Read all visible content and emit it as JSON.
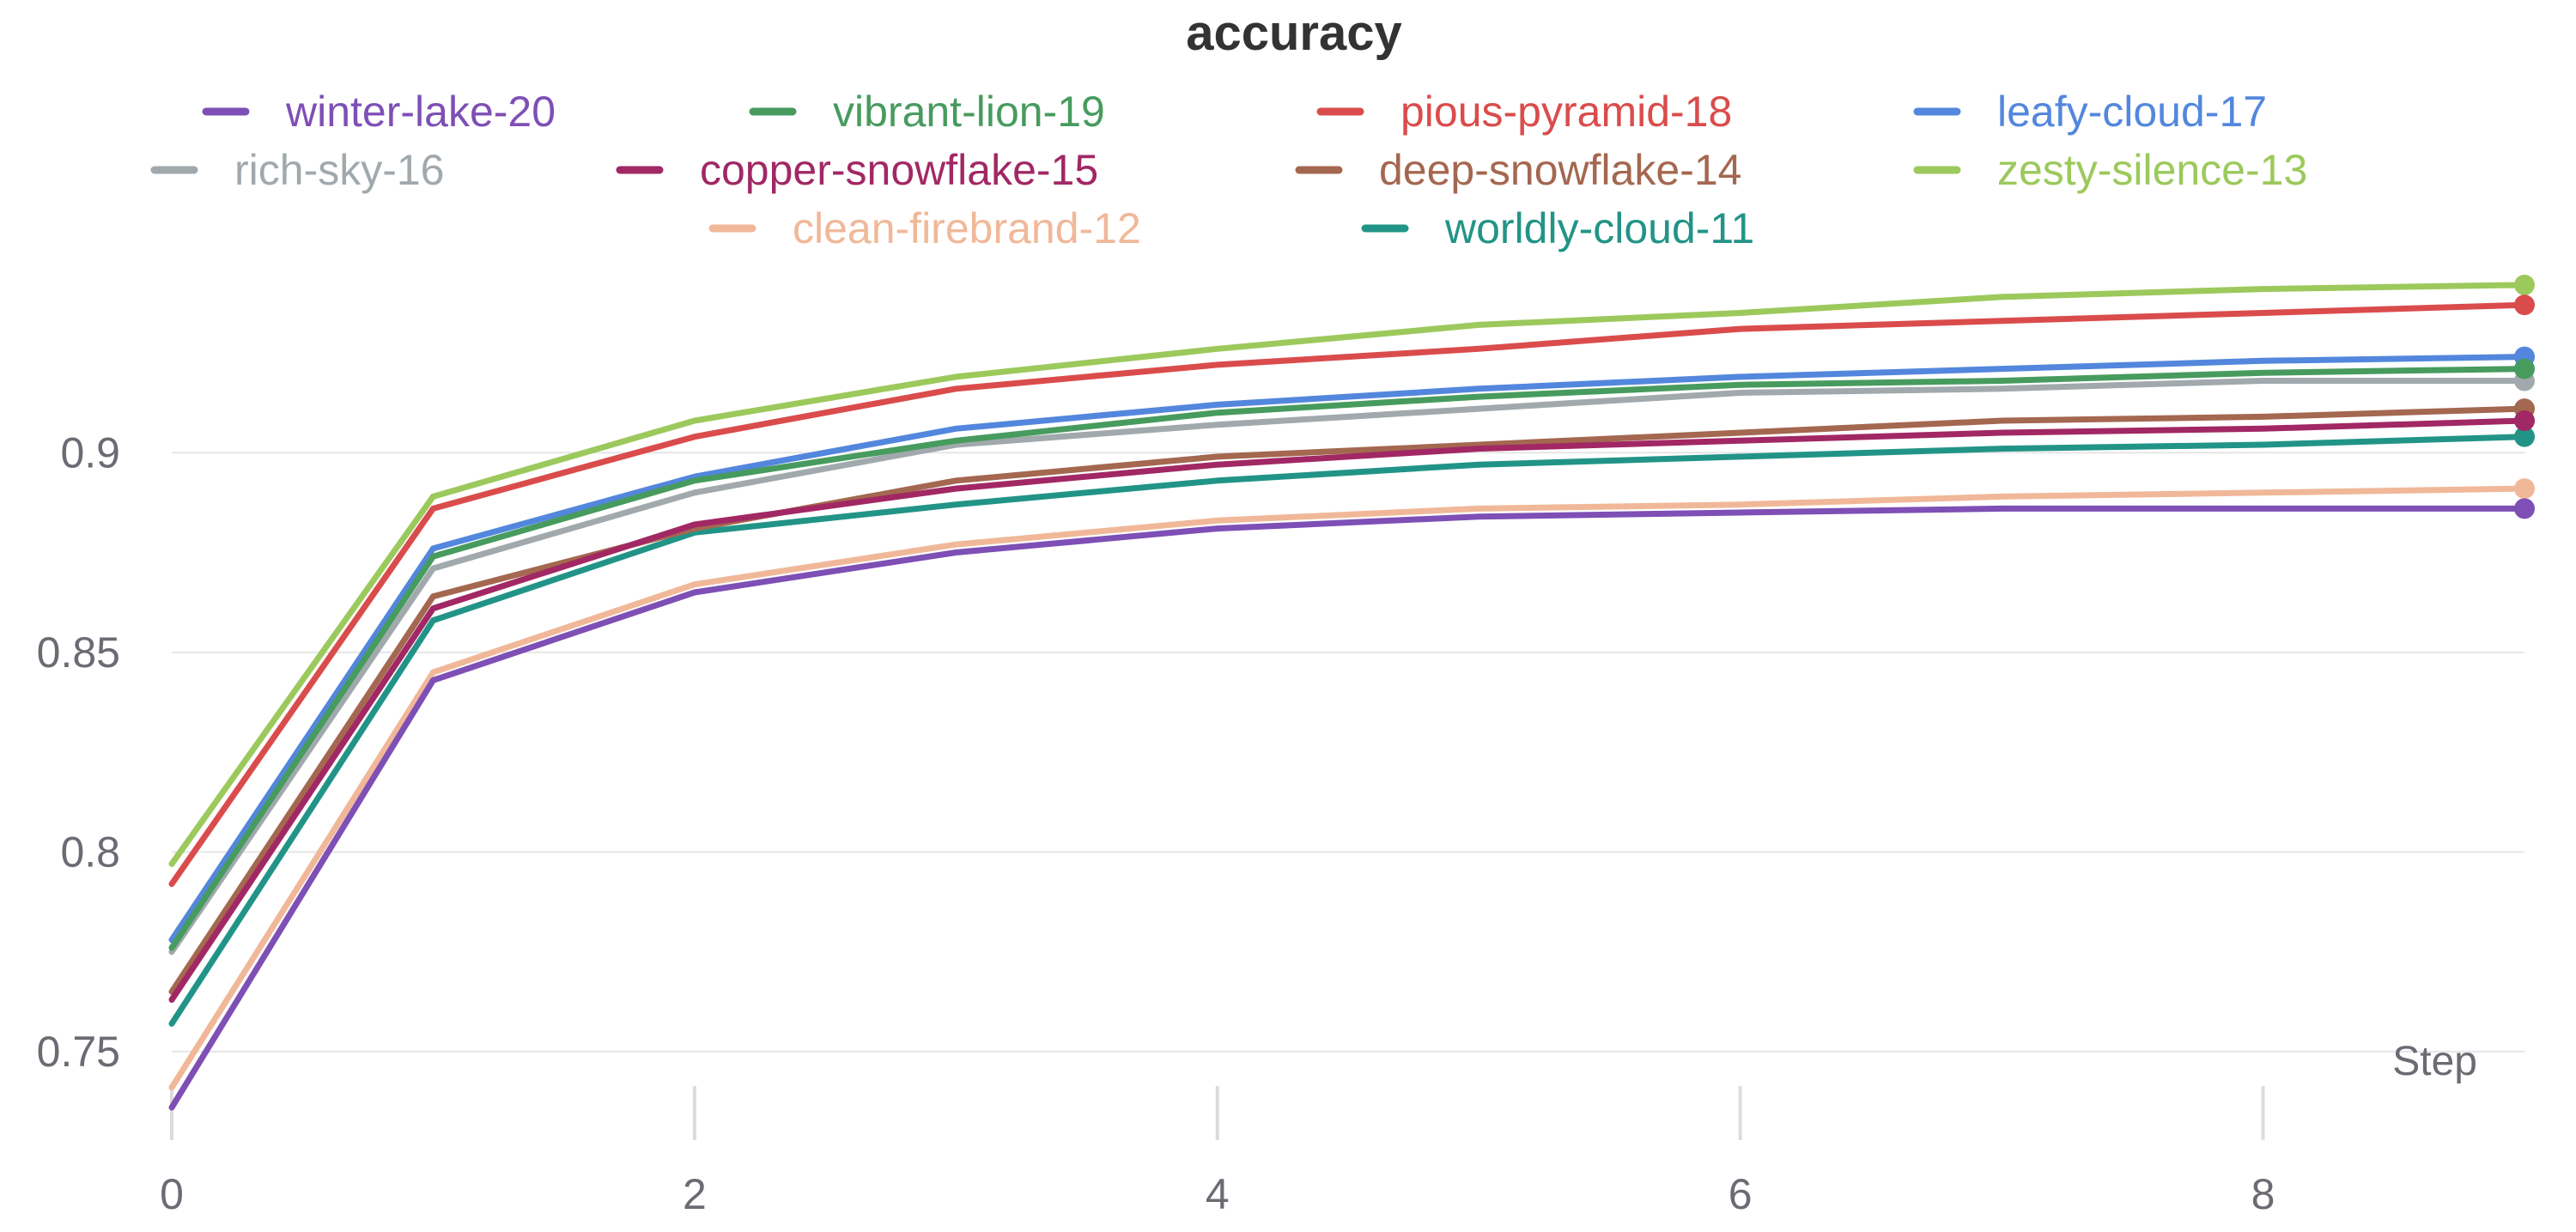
{
  "chart_data": {
    "type": "line",
    "title": "accuracy",
    "xlabel": "Step",
    "ylabel": "",
    "xlim": [
      0,
      9
    ],
    "ylim": [
      0.733,
      0.948
    ],
    "x": [
      0,
      1,
      2,
      3,
      4,
      5,
      6,
      7,
      8,
      9
    ],
    "x_ticks": [
      "0",
      "2",
      "4",
      "6",
      "8"
    ],
    "y_ticks": [
      "0.75",
      "0.8",
      "0.85",
      "0.9"
    ],
    "grid": "horizontal",
    "legend_position": "top",
    "series": [
      {
        "name": "winter-lake-20",
        "color": "#7e4fb5",
        "values": [
          0.736,
          0.843,
          0.865,
          0.875,
          0.881,
          0.884,
          0.885,
          0.886,
          0.886,
          0.886
        ]
      },
      {
        "name": "vibrant-lion-19",
        "color": "#479b5e",
        "values": [
          0.776,
          0.874,
          0.893,
          0.903,
          0.91,
          0.914,
          0.917,
          0.918,
          0.92,
          0.921
        ]
      },
      {
        "name": "pious-pyramid-18",
        "color": "#da4c4c",
        "values": [
          0.792,
          0.886,
          0.904,
          0.916,
          0.922,
          0.926,
          0.931,
          0.933,
          0.935,
          0.937
        ]
      },
      {
        "name": "leafy-cloud-17",
        "color": "#5387dd",
        "values": [
          0.778,
          0.876,
          0.894,
          0.906,
          0.912,
          0.916,
          0.919,
          0.921,
          0.923,
          0.924
        ]
      },
      {
        "name": "rich-sky-16",
        "color": "#a1a9ad",
        "values": [
          0.775,
          0.871,
          0.89,
          0.902,
          0.907,
          0.911,
          0.915,
          0.916,
          0.918,
          0.918
        ]
      },
      {
        "name": "copper-snowflake-15",
        "color": "#a12864",
        "values": [
          0.763,
          0.861,
          0.882,
          0.891,
          0.897,
          0.901,
          0.903,
          0.905,
          0.906,
          0.908
        ]
      },
      {
        "name": "deep-snowflake-14",
        "color": "#a46750",
        "values": [
          0.765,
          0.864,
          0.881,
          0.893,
          0.899,
          0.902,
          0.905,
          0.908,
          0.909,
          0.911
        ]
      },
      {
        "name": "zesty-silence-13",
        "color": "#9cc95c",
        "values": [
          0.797,
          0.889,
          0.908,
          0.919,
          0.926,
          0.932,
          0.935,
          0.939,
          0.941,
          0.942
        ]
      },
      {
        "name": "clean-firebrand-12",
        "color": "#f0b899",
        "values": [
          0.741,
          0.845,
          0.867,
          0.877,
          0.883,
          0.886,
          0.887,
          0.889,
          0.89,
          0.891
        ]
      },
      {
        "name": "worldly-cloud-11",
        "color": "#229487",
        "values": [
          0.757,
          0.858,
          0.88,
          0.887,
          0.893,
          0.897,
          0.899,
          0.901,
          0.902,
          0.904
        ]
      }
    ]
  }
}
